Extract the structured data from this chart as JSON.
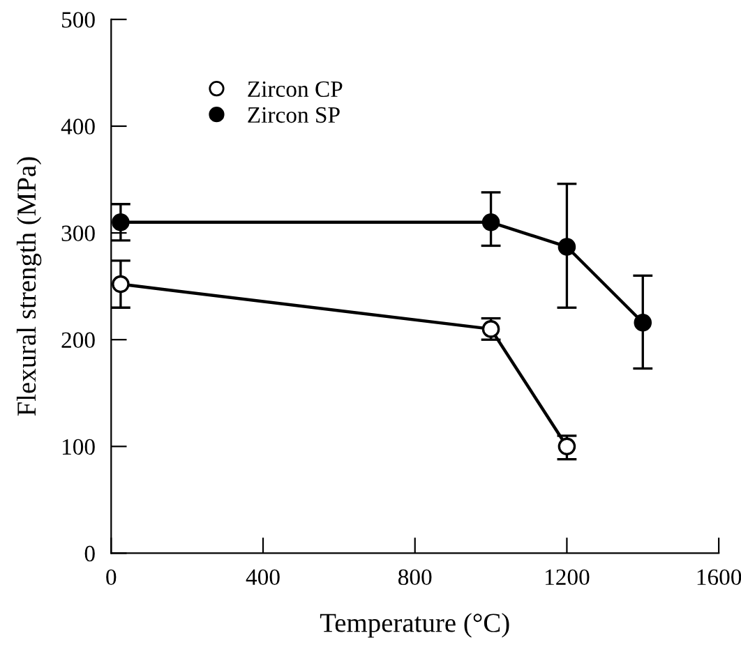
{
  "chart_data": {
    "type": "line",
    "xlabel": "Temperature (°C)",
    "ylabel": "Flexural strength (MPa)",
    "xlim": [
      0,
      1600
    ],
    "xticks": [
      0,
      400,
      800,
      1200,
      1600
    ],
    "ylim": [
      0,
      500
    ],
    "yticks": [
      0,
      100,
      200,
      300,
      400,
      500
    ],
    "grid": false,
    "legend": "top left",
    "marker": "circle",
    "line_style": "solid",
    "series": [
      {
        "name": "Zircon CP",
        "color": "#ffffff",
        "x": [
          25,
          1000,
          1200
        ],
        "values": [
          252,
          210,
          100
        ],
        "errors": [
          [
            230,
            274
          ],
          [
            200,
            220
          ],
          [
            88,
            110
          ]
        ]
      },
      {
        "name": "Zircon SP",
        "color": "#000000",
        "x": [
          25,
          1000,
          1200,
          1400
        ],
        "values": [
          310,
          310,
          287,
          216
        ],
        "errors": [
          [
            293,
            327
          ],
          [
            288,
            338
          ],
          [
            230,
            346
          ],
          [
            173,
            260
          ]
        ]
      }
    ]
  }
}
